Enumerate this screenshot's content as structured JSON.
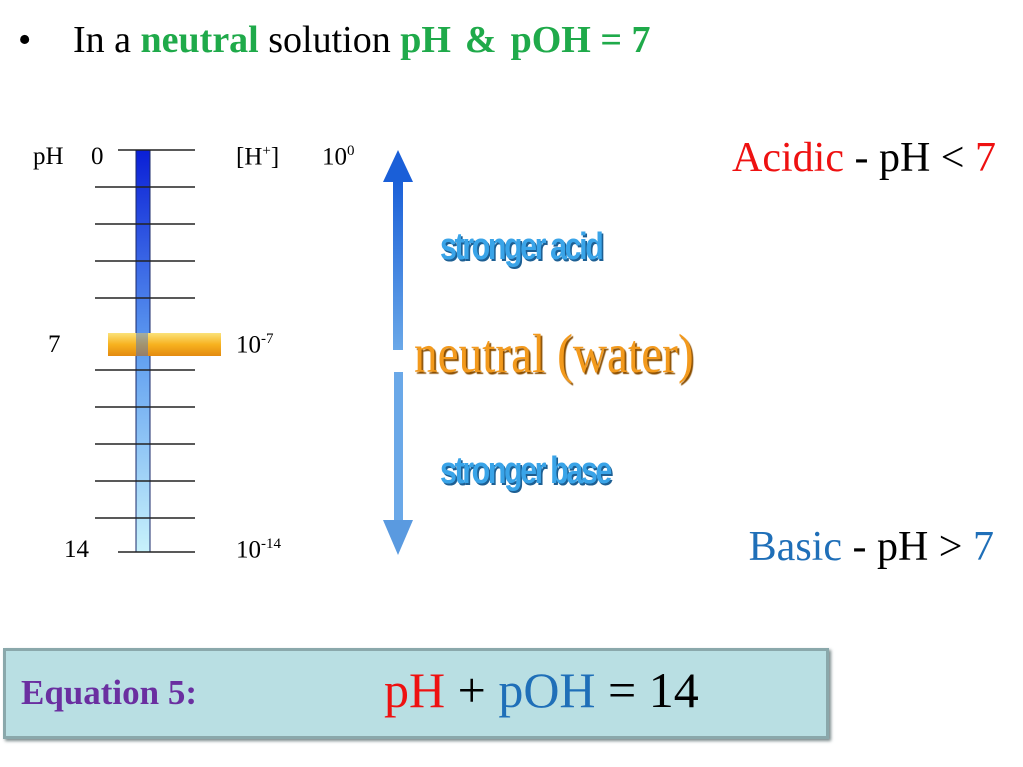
{
  "bullet": {
    "marker": "•",
    "prefix": "In a ",
    "emphasis": "neutral",
    "middle": " solution ",
    "ph": "pH",
    "amp": "&",
    "poh_eq": "pOH = 7"
  },
  "scale": {
    "ph_header": "pH",
    "h_header": "[H",
    "h_header_sup": "+",
    "h_header_close": "]",
    "ph_ticks": [
      {
        "label": "0",
        "fraction": 0.0
      },
      {
        "label": "7",
        "fraction": 0.5
      },
      {
        "label": "14",
        "fraction": 1.0
      }
    ],
    "h_ticks": [
      {
        "base": "10",
        "exp": "0",
        "fraction": 0.0
      },
      {
        "base": "10",
        "exp": "-7",
        "fraction": 0.5
      },
      {
        "base": "10",
        "exp": "-14",
        "fraction": 1.0
      }
    ],
    "arrow_labels": {
      "acid": "stronger acid",
      "neutral": "neutral (water)",
      "base": "stronger base"
    },
    "colors": {
      "acid_bar": "#0a1fd6",
      "base_bar": "#c8f2fb",
      "neutral_band": "#f7b21f",
      "arrow_top": "#1a5fd8",
      "arrow_bottom": "#6aa8e8"
    }
  },
  "conditions": {
    "acidic": {
      "word": "Acidic",
      "rest": " - pH < ",
      "value": "7"
    },
    "basic": {
      "word": "Basic",
      "rest": " - pH > ",
      "value": "7"
    }
  },
  "equation": {
    "label": "Equation 5:",
    "ph": "pH",
    "plus": " + ",
    "poh": "pOH",
    "equals": " = 14"
  }
}
